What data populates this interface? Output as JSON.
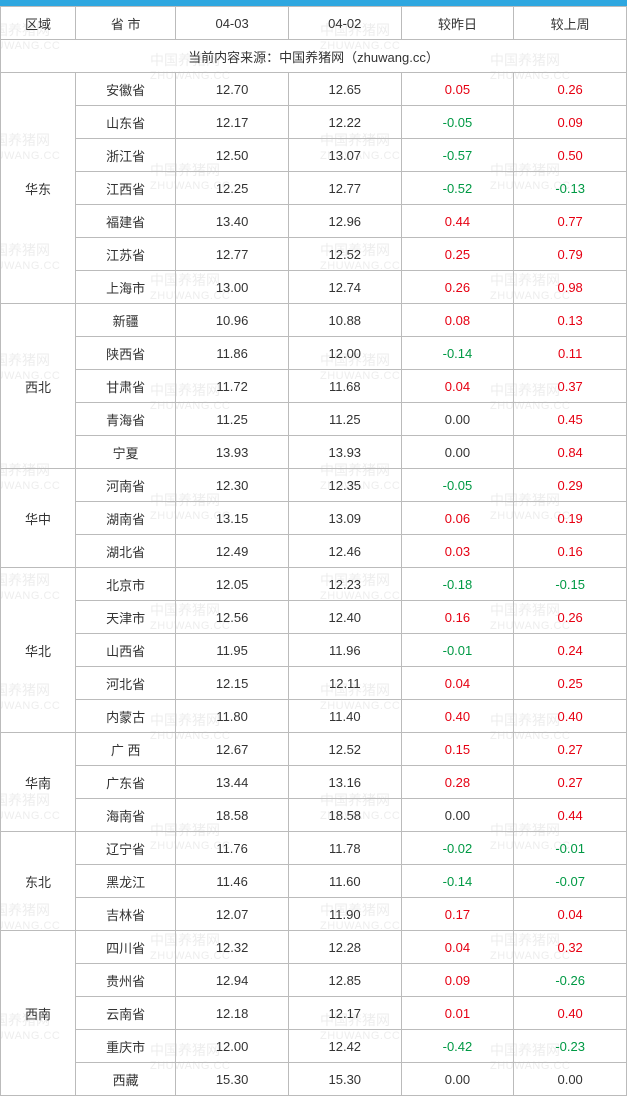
{
  "header": {
    "region": "区域",
    "province": "省  市",
    "date1": "04-03",
    "date2": "04-02",
    "vs_yesterday": "较昨日",
    "vs_lastweek": "较上周"
  },
  "source_line": "当前内容来源：中国养猪网（zhuwang.cc）",
  "watermark": {
    "line1": "中国养猪网",
    "line2": "ZHUWANG.CC"
  },
  "colors": {
    "positive": "#e60012",
    "negative": "#009944",
    "border": "#bbbbbb",
    "topbar": "#2ea7e0",
    "text": "#333333",
    "wm": "#cccccc"
  },
  "col_widths_pct": [
    12,
    16,
    18,
    18,
    18,
    18
  ],
  "regions": [
    {
      "name": "华东",
      "rows": [
        {
          "prov": "安徽省",
          "d1": "12.70",
          "d2": "12.65",
          "dy": "0.05",
          "dw": "0.26"
        },
        {
          "prov": "山东省",
          "d1": "12.17",
          "d2": "12.22",
          "dy": "-0.05",
          "dw": "0.09"
        },
        {
          "prov": "浙江省",
          "d1": "12.50",
          "d2": "13.07",
          "dy": "-0.57",
          "dw": "0.50"
        },
        {
          "prov": "江西省",
          "d1": "12.25",
          "d2": "12.77",
          "dy": "-0.52",
          "dw": "-0.13"
        },
        {
          "prov": "福建省",
          "d1": "13.40",
          "d2": "12.96",
          "dy": "0.44",
          "dw": "0.77"
        },
        {
          "prov": "江苏省",
          "d1": "12.77",
          "d2": "12.52",
          "dy": "0.25",
          "dw": "0.79"
        },
        {
          "prov": "上海市",
          "d1": "13.00",
          "d2": "12.74",
          "dy": "0.26",
          "dw": "0.98"
        }
      ]
    },
    {
      "name": "西北",
      "rows": [
        {
          "prov": "新疆",
          "d1": "10.96",
          "d2": "10.88",
          "dy": "0.08",
          "dw": "0.13"
        },
        {
          "prov": "陕西省",
          "d1": "11.86",
          "d2": "12.00",
          "dy": "-0.14",
          "dw": "0.11"
        },
        {
          "prov": "甘肃省",
          "d1": "11.72",
          "d2": "11.68",
          "dy": "0.04",
          "dw": "0.37"
        },
        {
          "prov": "青海省",
          "d1": "11.25",
          "d2": "11.25",
          "dy": "0.00",
          "dw": "0.45"
        },
        {
          "prov": "宁夏",
          "d1": "13.93",
          "d2": "13.93",
          "dy": "0.00",
          "dw": "0.84"
        }
      ]
    },
    {
      "name": "华中",
      "rows": [
        {
          "prov": "河南省",
          "d1": "12.30",
          "d2": "12.35",
          "dy": "-0.05",
          "dw": "0.29"
        },
        {
          "prov": "湖南省",
          "d1": "13.15",
          "d2": "13.09",
          "dy": "0.06",
          "dw": "0.19"
        },
        {
          "prov": "湖北省",
          "d1": "12.49",
          "d2": "12.46",
          "dy": "0.03",
          "dw": "0.16"
        }
      ]
    },
    {
      "name": "华北",
      "rows": [
        {
          "prov": "北京市",
          "d1": "12.05",
          "d2": "12.23",
          "dy": "-0.18",
          "dw": "-0.15"
        },
        {
          "prov": "天津市",
          "d1": "12.56",
          "d2": "12.40",
          "dy": "0.16",
          "dw": "0.26"
        },
        {
          "prov": "山西省",
          "d1": "11.95",
          "d2": "11.96",
          "dy": "-0.01",
          "dw": "0.24"
        },
        {
          "prov": "河北省",
          "d1": "12.15",
          "d2": "12.11",
          "dy": "0.04",
          "dw": "0.25"
        },
        {
          "prov": "内蒙古",
          "d1": "11.80",
          "d2": "11.40",
          "dy": "0.40",
          "dw": "0.40"
        }
      ]
    },
    {
      "name": "华南",
      "rows": [
        {
          "prov": "广  西",
          "d1": "12.67",
          "d2": "12.52",
          "dy": "0.15",
          "dw": "0.27"
        },
        {
          "prov": "广东省",
          "d1": "13.44",
          "d2": "13.16",
          "dy": "0.28",
          "dw": "0.27"
        },
        {
          "prov": "海南省",
          "d1": "18.58",
          "d2": "18.58",
          "dy": "0.00",
          "dw": "0.44"
        }
      ]
    },
    {
      "name": "东北",
      "rows": [
        {
          "prov": "辽宁省",
          "d1": "11.76",
          "d2": "11.78",
          "dy": "-0.02",
          "dw": "-0.01"
        },
        {
          "prov": "黑龙江",
          "d1": "11.46",
          "d2": "11.60",
          "dy": "-0.14",
          "dw": "-0.07"
        },
        {
          "prov": "吉林省",
          "d1": "12.07",
          "d2": "11.90",
          "dy": "0.17",
          "dw": "0.04"
        }
      ]
    },
    {
      "name": "西南",
      "rows": [
        {
          "prov": "四川省",
          "d1": "12.32",
          "d2": "12.28",
          "dy": "0.04",
          "dw": "0.32"
        },
        {
          "prov": "贵州省",
          "d1": "12.94",
          "d2": "12.85",
          "dy": "0.09",
          "dw": "-0.26"
        },
        {
          "prov": "云南省",
          "d1": "12.18",
          "d2": "12.17",
          "dy": "0.01",
          "dw": "0.40"
        },
        {
          "prov": "重庆市",
          "d1": "12.00",
          "d2": "12.42",
          "dy": "-0.42",
          "dw": "-0.23"
        },
        {
          "prov": "西藏",
          "d1": "15.30",
          "d2": "15.30",
          "dy": "0.00",
          "dw": "0.00"
        }
      ]
    }
  ]
}
